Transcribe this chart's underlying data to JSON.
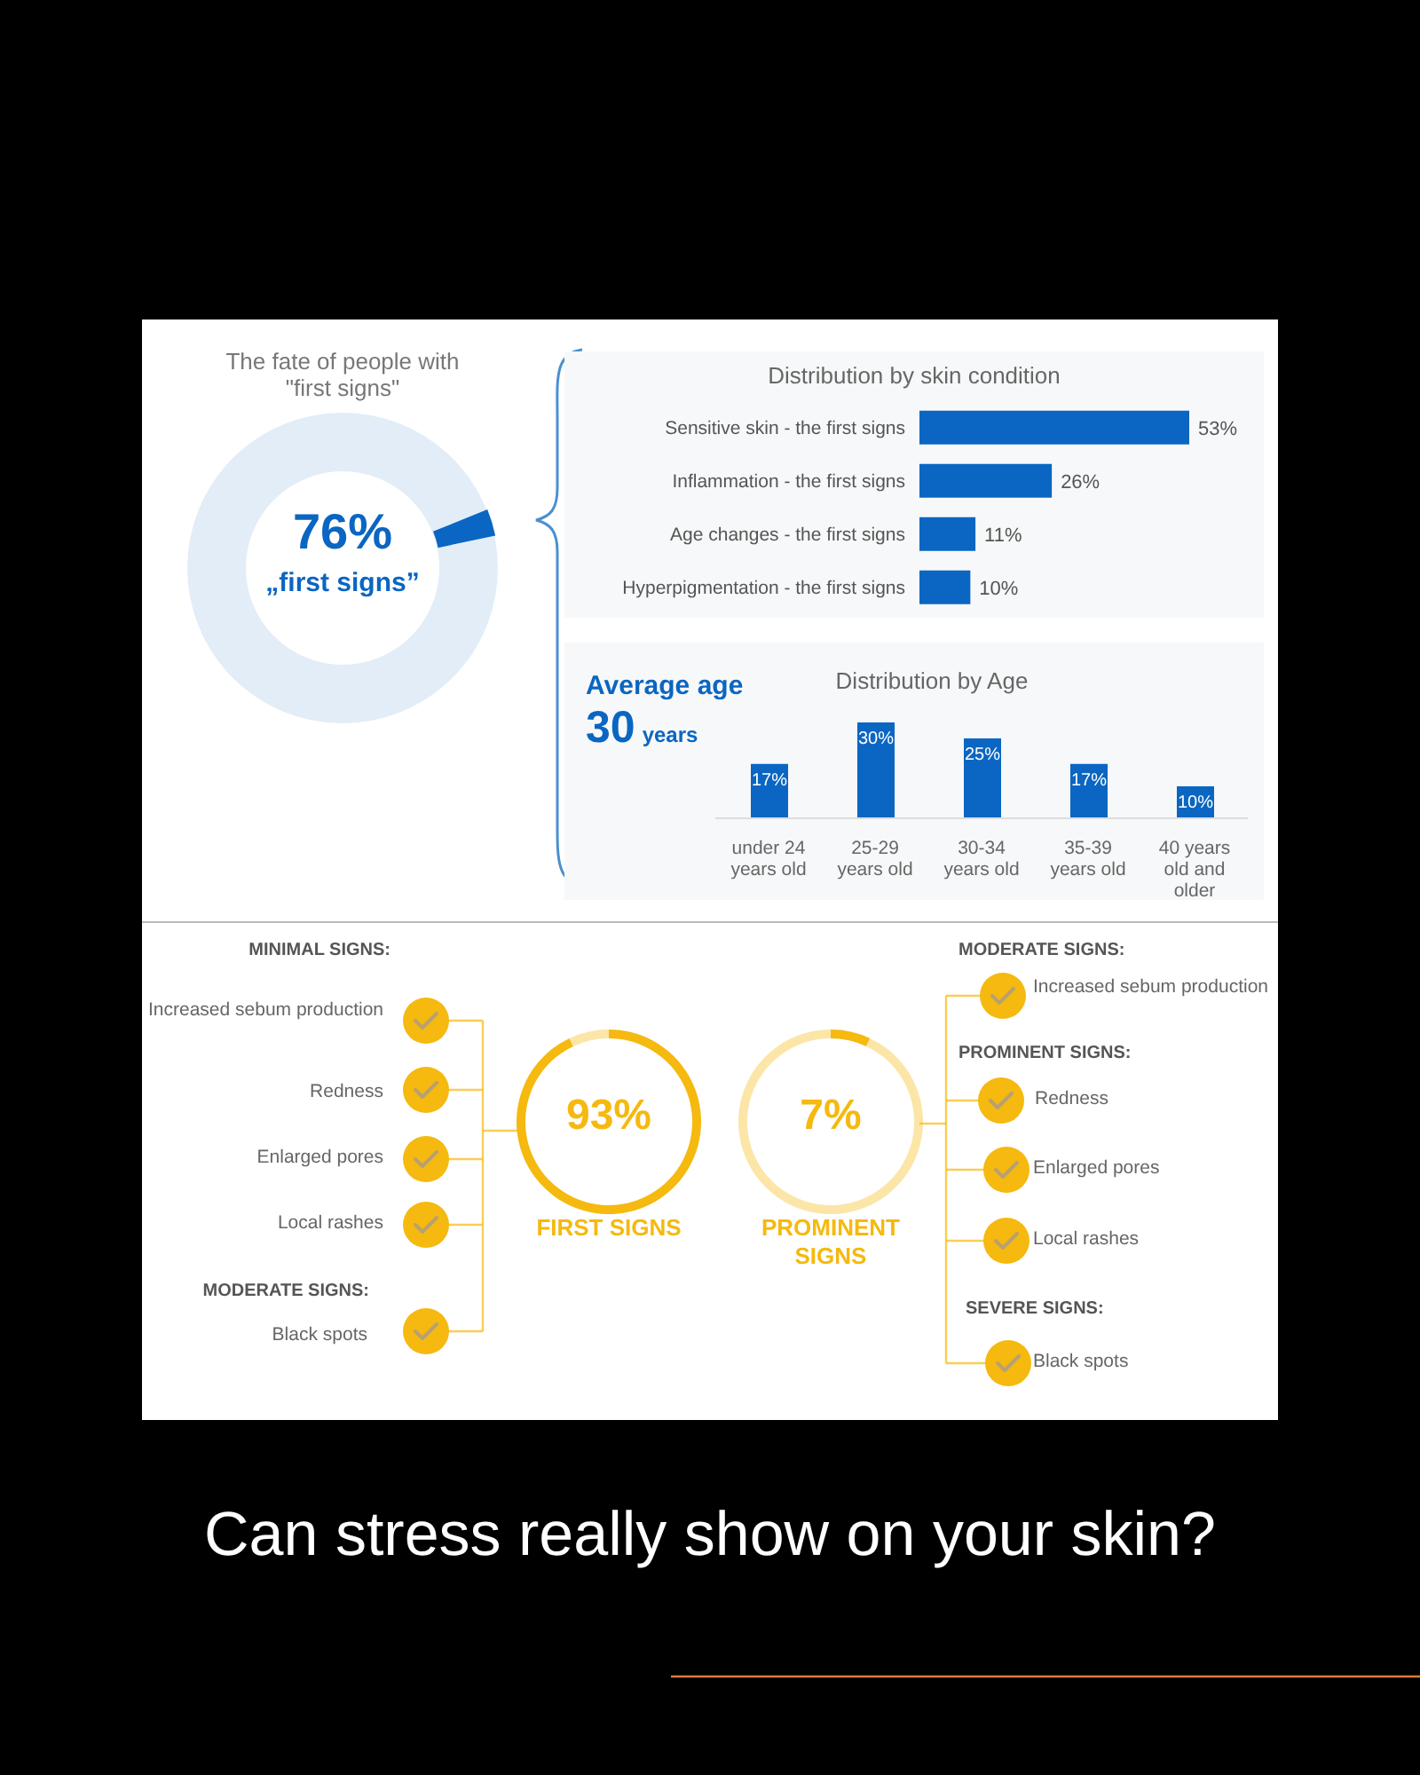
{
  "chart_data": [
    {
      "type": "other",
      "title": "The fate of people with \"first signs\"",
      "annotations": [
        "76%",
        "„first signs”"
      ]
    },
    {
      "type": "bar",
      "orientation": "horizontal",
      "title": "Distribution by skin condition",
      "categories": [
        "Sensitive skin - the first signs",
        "Inflammation - the first signs",
        "Age changes - the first signs",
        "Hyperpigmentation - the first signs"
      ],
      "values": [
        53,
        26,
        11,
        10
      ],
      "value_labels": [
        "53%",
        "26%",
        "11%",
        "10%"
      ],
      "color": "#0a66c2",
      "tick_labels": "y"
    },
    {
      "type": "bar",
      "title": "Distribution by Age",
      "categories": [
        "under 24 years old",
        "25-29 years old",
        "30-34 years old",
        "35-39 years old",
        "40 years old and older"
      ],
      "values": [
        17,
        30,
        25,
        17,
        10
      ],
      "value_labels": [
        "17%",
        "30%",
        "25%",
        "17%",
        "10%"
      ],
      "color": "#0a66c2",
      "tick_labels": "x",
      "annotations": [
        "Average age",
        "30 years"
      ]
    },
    {
      "type": "donut",
      "categories": [
        "FIRST SIGNS",
        null
      ],
      "values": [
        93,
        7
      ],
      "colors": [
        "#f5b90f",
        "#fbe6a8"
      ],
      "value_labels": [
        "93%",
        null
      ],
      "annotations": [
        "MINIMAL SIGNS:",
        "Increased sebum production",
        "Redness",
        "Enlarged pores",
        "Local rashes",
        "MODERATE SIGNS:",
        "Black spots"
      ]
    },
    {
      "type": "donut",
      "categories": [
        "PROMINENT SIGNS",
        null
      ],
      "values": [
        7,
        93
      ],
      "colors": [
        "#f5b90f",
        "#fbe6a8"
      ],
      "value_labels": [
        "7%",
        null
      ],
      "annotations": [
        "MODERATE SIGNS:",
        "Increased sebum production",
        "PROMINENT SIGNS:",
        "Redness",
        "Enlarged pores",
        "Local rashes",
        "SEVERE SIGNS:",
        "Black spots",
        "Can stress really show on your skin?"
      ]
    }
  ]
}
